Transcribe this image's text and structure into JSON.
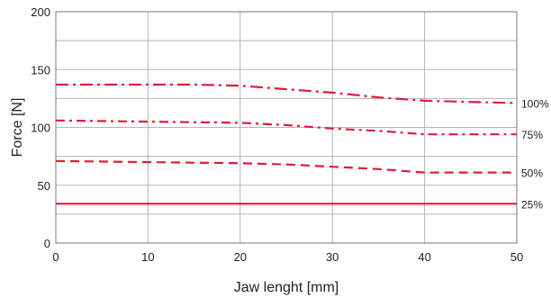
{
  "chart_data": {
    "type": "line",
    "xlabel": "Jaw lenght [mm]",
    "ylabel": "Force [N]",
    "xlim": [
      0,
      50
    ],
    "ylim": [
      0,
      200
    ],
    "x_ticks": [
      0,
      10,
      20,
      30,
      40,
      50
    ],
    "y_ticks": [
      0,
      50,
      100,
      150,
      200
    ],
    "grid": true,
    "series_color": "#e31b37",
    "series": [
      {
        "name": "100%",
        "style": "dash-dot-long",
        "x": [
          0,
          10,
          15,
          20,
          25,
          30,
          35,
          40,
          45,
          50
        ],
        "y": [
          137,
          137,
          137,
          136,
          133,
          130,
          126,
          123,
          122,
          121
        ]
      },
      {
        "name": "75%",
        "style": "dash-dot",
        "x": [
          0,
          10,
          20,
          25,
          30,
          35,
          40,
          45,
          50
        ],
        "y": [
          106,
          105,
          104,
          102,
          99,
          97,
          94,
          94,
          94
        ]
      },
      {
        "name": "50%",
        "style": "dashed",
        "x": [
          0,
          10,
          20,
          25,
          30,
          35,
          40,
          45,
          50
        ],
        "y": [
          71,
          70,
          69,
          68,
          66,
          64,
          61,
          61,
          61
        ]
      },
      {
        "name": "25%",
        "style": "solid",
        "x": [
          0,
          50
        ],
        "y": [
          34,
          34
        ]
      }
    ]
  }
}
